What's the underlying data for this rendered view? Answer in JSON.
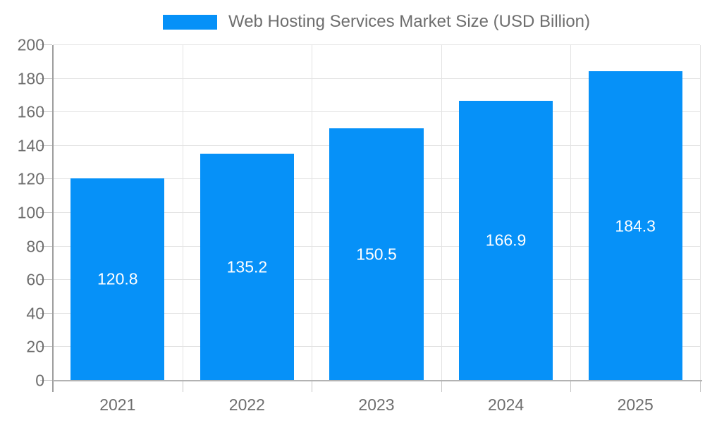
{
  "chart_data": {
    "type": "bar",
    "title": "Web Hosting Services Market Size (USD Billion)",
    "categories": [
      "2021",
      "2022",
      "2023",
      "2024",
      "2025"
    ],
    "values": [
      120.8,
      135.2,
      150.5,
      166.9,
      184.3
    ],
    "value_labels": [
      "120.8",
      "135.2",
      "150.5",
      "166.9",
      "184.3"
    ],
    "xlabel": "",
    "ylabel": "",
    "ylim": [
      0,
      200
    ],
    "ytick_step": 20,
    "grid": true,
    "legend_position": "top",
    "colors": {
      "bar": "#0691f8",
      "value_label": "#ffffff",
      "axis_text": "#6e6e6e",
      "legend_text": "#6e6e6e",
      "gridline": "#e3e3e3",
      "axis_line": "#9e9e9e",
      "baseline": "#b3b3b3",
      "tick": "#c6c6c6",
      "background": "#ffffff"
    }
  }
}
